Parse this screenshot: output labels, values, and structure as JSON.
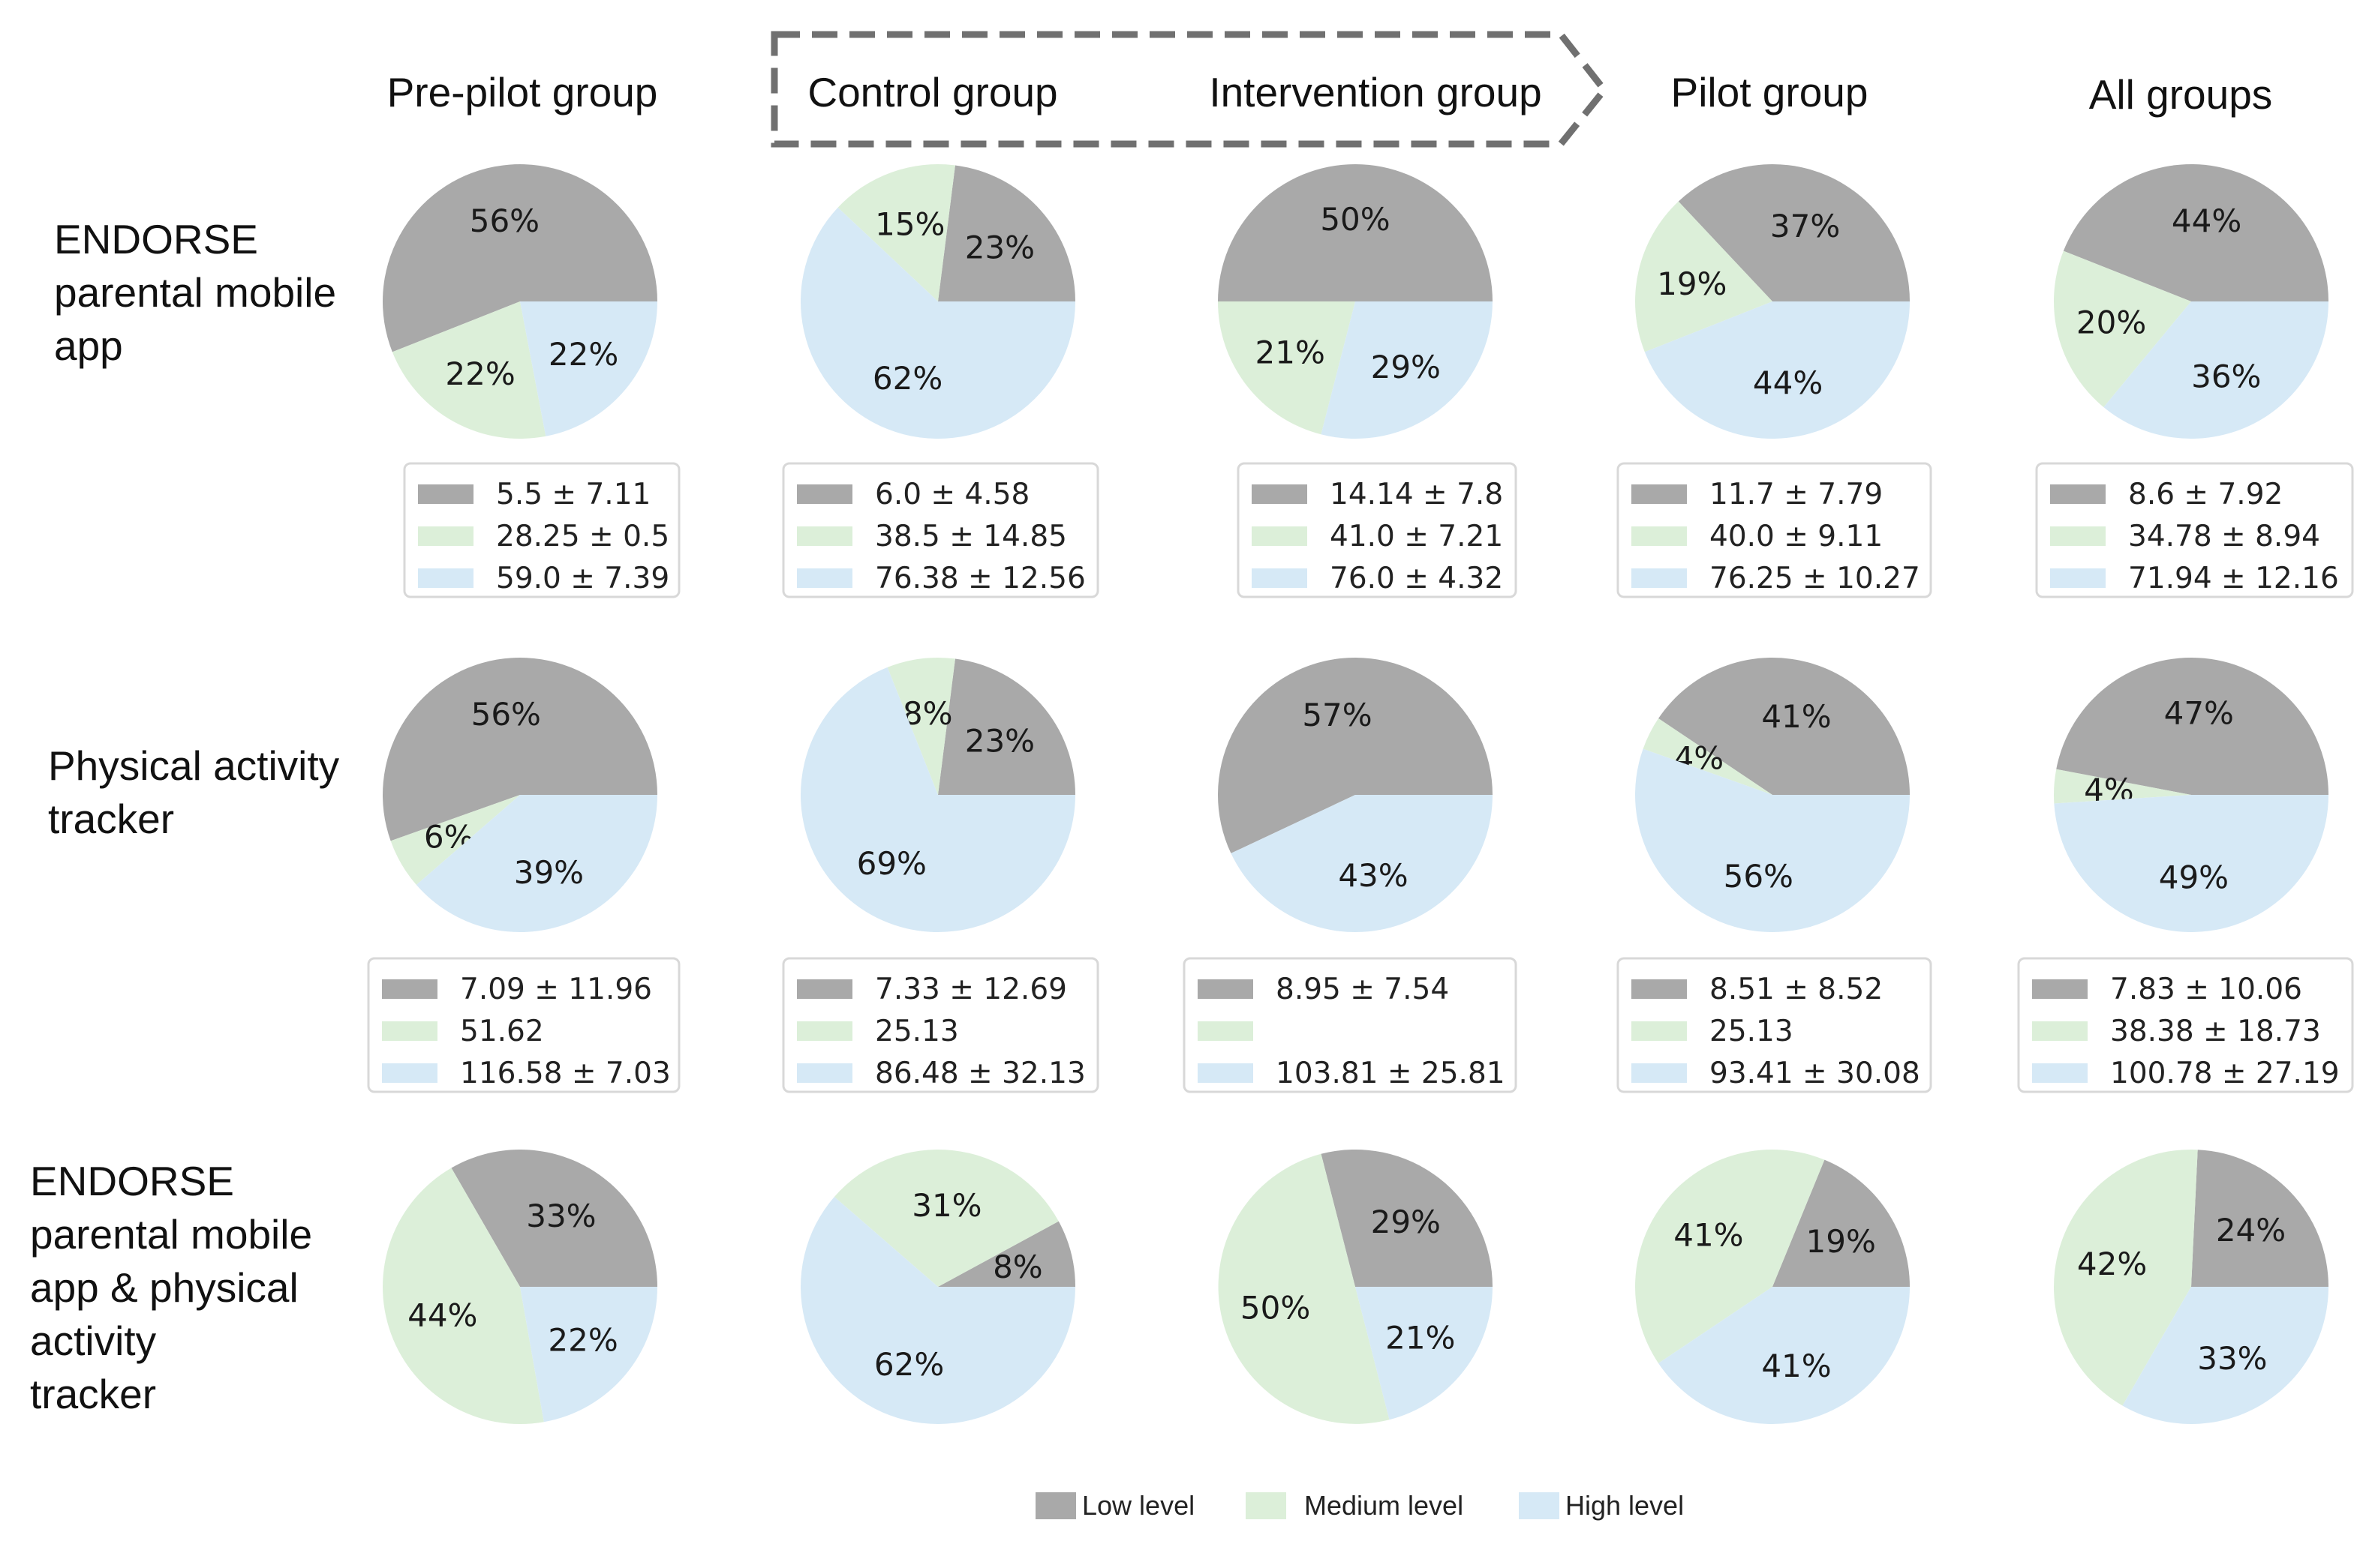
{
  "colors": {
    "low": "#a9a9a9",
    "medium": "#dcefd9",
    "high": "#d6e9f6",
    "arrow": "#707070",
    "legend_box_border": "#d8d8d8"
  },
  "column_headers": [
    "Pre-pilot group",
    "Control group",
    "Intervention group",
    "Pilot group",
    "All groups"
  ],
  "row_labels": [
    [
      "ENDORSE",
      "parental mobile",
      "app"
    ],
    [
      "Physical activity",
      "tracker"
    ],
    [
      "ENDORSE",
      "parental mobile",
      "app & physical",
      "activity",
      "tracker"
    ]
  ],
  "legend": [
    "Low level",
    "Medium level",
    "High level"
  ],
  "chart_data": [
    {
      "type": "pie",
      "title": "ENDORSE parental mobile app",
      "categories": [
        "Low level",
        "Medium level",
        "High level"
      ],
      "groups": [
        {
          "group": "Pre-pilot group",
          "values": [
            56,
            22,
            22
          ],
          "labels": [
            "56%",
            "22%",
            "22%"
          ],
          "stats": [
            "5.5 ± 7.11",
            "28.25 ± 0.5",
            "59.0 ± 7.39"
          ]
        },
        {
          "group": "Control group",
          "values": [
            23,
            15,
            62
          ],
          "labels": [
            "23%",
            "15%",
            "62%"
          ],
          "stats": [
            "6.0 ± 4.58",
            "38.5 ± 14.85",
            "76.38 ± 12.56"
          ]
        },
        {
          "group": "Intervention group",
          "values": [
            50,
            21,
            29
          ],
          "labels": [
            "50%",
            "21%",
            "29%"
          ],
          "stats": [
            "14.14 ± 7.8",
            "41.0 ± 7.21",
            "76.0 ± 4.32"
          ]
        },
        {
          "group": "Pilot group",
          "values": [
            37,
            19,
            44
          ],
          "labels": [
            "37%",
            "19%",
            "44%"
          ],
          "stats": [
            "11.7 ± 7.79",
            "40.0 ± 9.11",
            "76.25 ± 10.27"
          ]
        },
        {
          "group": "All groups",
          "values": [
            44,
            20,
            36
          ],
          "labels": [
            "44%",
            "20%",
            "36%"
          ],
          "stats": [
            "8.6 ± 7.92",
            "34.78 ± 8.94",
            "71.94 ± 12.16"
          ]
        }
      ]
    },
    {
      "type": "pie",
      "title": "Physical activity tracker",
      "categories": [
        "Low level",
        "Medium level",
        "High level"
      ],
      "groups": [
        {
          "group": "Pre-pilot group",
          "values": [
            56,
            6,
            39
          ],
          "labels": [
            "56%",
            "6%",
            "39%"
          ],
          "stats": [
            "7.09 ± 11.96",
            "51.62",
            "116.58 ± 7.03"
          ]
        },
        {
          "group": "Control group",
          "values": [
            23,
            8,
            69
          ],
          "labels": [
            "23%",
            "8%",
            "69%"
          ],
          "stats": [
            "7.33 ± 12.69",
            "25.13",
            "86.48 ± 32.13"
          ]
        },
        {
          "group": "Intervention group",
          "values": [
            57,
            0,
            43
          ],
          "labels": [
            "57%",
            "",
            "43%"
          ],
          "stats": [
            "8.95 ± 7.54",
            "",
            "103.81 ± 25.81"
          ]
        },
        {
          "group": "Pilot group",
          "values": [
            41,
            4,
            56
          ],
          "labels": [
            "41%",
            "4%",
            "56%"
          ],
          "stats": [
            "8.51 ± 8.52",
            "25.13",
            "93.41 ± 30.08"
          ]
        },
        {
          "group": "All groups",
          "values": [
            47,
            4,
            49
          ],
          "labels": [
            "47%",
            "4%",
            "49%"
          ],
          "stats": [
            "7.83 ± 10.06",
            "38.38 ± 18.73",
            "100.78 ± 27.19"
          ]
        }
      ]
    },
    {
      "type": "pie",
      "title": "ENDORSE parental mobile app & physical activity tracker",
      "categories": [
        "Low level",
        "Medium level",
        "High level"
      ],
      "groups": [
        {
          "group": "Pre-pilot group",
          "values": [
            33,
            44,
            22
          ],
          "labels": [
            "33%",
            "44%",
            "22%"
          ]
        },
        {
          "group": "Control group",
          "values": [
            8,
            31,
            62
          ],
          "labels": [
            "8%",
            "31%",
            "62%"
          ]
        },
        {
          "group": "Intervention group",
          "values": [
            29,
            50,
            21
          ],
          "labels": [
            "29%",
            "50%",
            "21%"
          ]
        },
        {
          "group": "Pilot group",
          "values": [
            19,
            41,
            41
          ],
          "labels": [
            "19%",
            "41%",
            "41%"
          ]
        },
        {
          "group": "All groups",
          "values": [
            24,
            42,
            33
          ],
          "labels": [
            "24%",
            "42%",
            "33%"
          ]
        }
      ]
    }
  ]
}
